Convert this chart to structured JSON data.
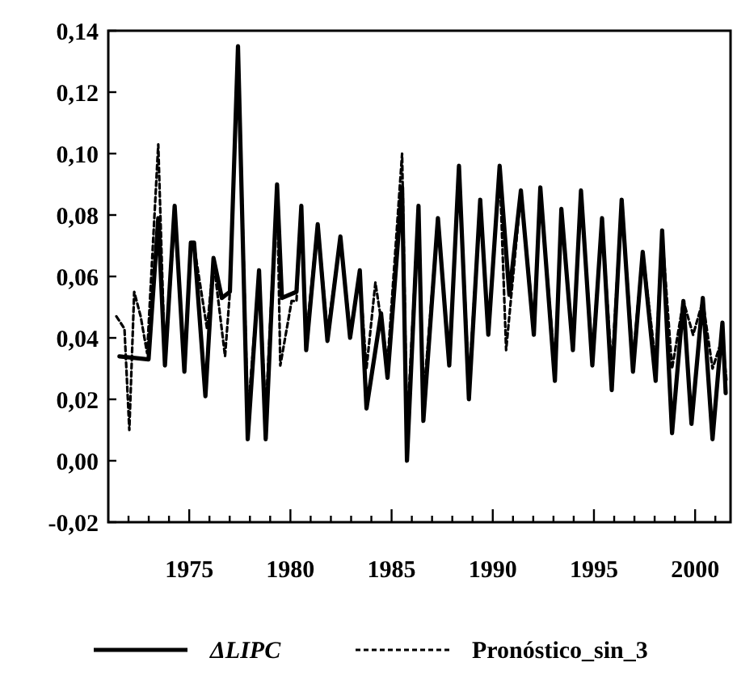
{
  "chart_data": {
    "type": "line",
    "x": [
      1971.55,
      1972.99,
      1973.47,
      1973.8,
      1974.28,
      1974.76,
      1975.08,
      1975.24,
      1975.8,
      1976.2,
      1976.61,
      1977.01,
      1977.41,
      1977.89,
      1978.45,
      1978.78,
      1979.34,
      1979.58,
      1980.3,
      1980.54,
      1980.78,
      1981.35,
      1981.83,
      1982.47,
      1982.95,
      1983.43,
      1983.76,
      1984.48,
      1984.8,
      1985.52,
      1985.76,
      1986.33,
      1986.57,
      1987.29,
      1987.85,
      1988.33,
      1988.82,
      1989.38,
      1989.78,
      1990.34,
      1990.82,
      1991.39,
      1992.03,
      1992.35,
      1993.07,
      1993.39,
      1993.96,
      1994.36,
      1994.92,
      1995.4,
      1995.88,
      1996.37,
      1996.93,
      1997.41,
      1998.05,
      1998.37,
      1998.86,
      1999.42,
      1999.82,
      2000.38,
      2000.86,
      2001.35,
      2001.51
    ],
    "series": [
      {
        "name": "ΔLIPC",
        "color": "#000000",
        "line_style": "solid",
        "values": [
          0.034,
          0.033,
          0.079,
          0.031,
          0.083,
          0.029,
          0.071,
          0.071,
          0.021,
          0.066,
          0.053,
          0.055,
          0.135,
          0.007,
          0.062,
          0.007,
          0.09,
          0.053,
          0.055,
          0.083,
          0.036,
          0.077,
          0.039,
          0.073,
          0.04,
          0.062,
          0.017,
          0.048,
          0.027,
          0.089,
          0.0,
          0.083,
          0.013,
          0.079,
          0.031,
          0.096,
          0.02,
          0.085,
          0.041,
          0.096,
          0.054,
          0.088,
          0.041,
          0.089,
          0.026,
          0.082,
          0.036,
          0.088,
          0.031,
          0.079,
          0.023,
          0.085,
          0.029,
          0.068,
          0.026,
          0.075,
          0.009,
          0.052,
          0.012,
          0.053,
          0.007,
          0.045,
          0.022
        ]
      },
      {
        "name": "Pronóstico_sin_3",
        "color": "#000000",
        "line_style": "dashed",
        "x": [
          1971.4,
          1971.8,
          1972.04,
          1972.28,
          1972.6,
          1972.92,
          1973.47,
          1973.8,
          1974.28,
          1974.76,
          1975.08,
          1975.24,
          1975.88,
          1976.2,
          1976.77,
          1977.01,
          1977.41,
          1977.89,
          1978.45,
          1978.78,
          1979.34,
          1979.5,
          1980.06,
          1980.3,
          1980.54,
          1980.78,
          1981.35,
          1981.83,
          1982.47,
          1982.95,
          1983.43,
          1983.76,
          1984.2,
          1984.8,
          1985.52,
          1985.76,
          1986.33,
          1986.57,
          1987.29,
          1987.85,
          1988.33,
          1988.82,
          1989.38,
          1989.78,
          1990.34,
          1990.66,
          1991.39,
          1992.03,
          1992.35,
          1993.07,
          1993.39,
          1993.96,
          1994.36,
          1994.92,
          1995.4,
          1995.88,
          1996.37,
          1996.93,
          1997.41,
          1998.05,
          1998.37,
          1998.86,
          1999.42,
          1999.9,
          2000.38,
          2000.86,
          2001.35,
          2001.55
        ],
        "values": [
          0.047,
          0.043,
          0.01,
          0.055,
          0.047,
          0.035,
          0.103,
          0.031,
          0.08,
          0.032,
          0.07,
          0.07,
          0.043,
          0.065,
          0.034,
          0.055,
          0.135,
          0.015,
          0.06,
          0.015,
          0.09,
          0.031,
          0.052,
          0.052,
          0.083,
          0.04,
          0.077,
          0.042,
          0.072,
          0.042,
          0.06,
          0.03,
          0.058,
          0.032,
          0.1,
          0.01,
          0.082,
          0.02,
          0.078,
          0.033,
          0.095,
          0.025,
          0.084,
          0.043,
          0.095,
          0.036,
          0.087,
          0.044,
          0.088,
          0.03,
          0.081,
          0.038,
          0.087,
          0.034,
          0.078,
          0.03,
          0.084,
          0.033,
          0.068,
          0.032,
          0.074,
          0.03,
          0.052,
          0.041,
          0.052,
          0.03,
          0.04,
          0.026
        ]
      }
    ],
    "xlim": [
      1971,
      2001.75
    ],
    "ylim": [
      -0.02,
      0.14
    ],
    "xticks": [
      {
        "value": 1972,
        "label": null
      },
      {
        "value": 1973,
        "label": null
      },
      {
        "value": 1974,
        "label": null
      },
      1975,
      {
        "value": 1976,
        "label": null
      },
      {
        "value": 1977,
        "label": null
      },
      {
        "value": 1978,
        "label": null
      },
      {
        "value": 1979,
        "label": null
      },
      1980,
      {
        "value": 1981,
        "label": null
      },
      {
        "value": 1982,
        "label": null
      },
      {
        "value": 1983,
        "label": null
      },
      {
        "value": 1984,
        "label": null
      },
      1985,
      {
        "value": 1986,
        "label": null
      },
      {
        "value": 1987,
        "label": null
      },
      {
        "value": 1988,
        "label": null
      },
      {
        "value": 1989,
        "label": null
      },
      1990,
      {
        "value": 1991,
        "label": null
      },
      {
        "value": 1992,
        "label": null
      },
      {
        "value": 1993,
        "label": null
      },
      {
        "value": 1994,
        "label": null
      },
      1995,
      {
        "value": 1996,
        "label": null
      },
      {
        "value": 1997,
        "label": null
      },
      {
        "value": 1998,
        "label": null
      },
      {
        "value": 1999,
        "label": null
      },
      2000,
      {
        "value": 2001,
        "label": null
      }
    ],
    "yticks": [
      {
        "value": -0.02,
        "label": "-0,02"
      },
      {
        "value": 0,
        "label": "0,00"
      },
      {
        "value": 0.02,
        "label": "0,02"
      },
      {
        "value": 0.04,
        "label": "0,04"
      },
      {
        "value": 0.06,
        "label": "0,06"
      },
      {
        "value": 0.08,
        "label": "0,08"
      },
      {
        "value": 0.1,
        "label": "0,10"
      },
      {
        "value": 0.12,
        "label": "0,12"
      },
      {
        "value": 0.14,
        "label": "0,14"
      }
    ],
    "grid": false,
    "legend": "bottom",
    "marker": "none"
  }
}
